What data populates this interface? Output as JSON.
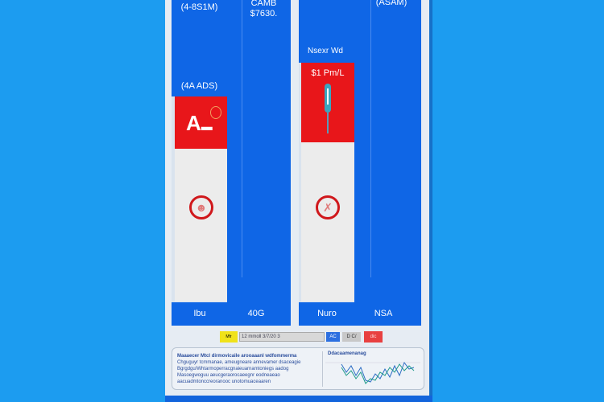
{
  "colors": {
    "background": "#1c9cf0",
    "primary_blue": "#0f66e6",
    "alert_red": "#e8161a",
    "highlight_yellow": "#f0e21a"
  },
  "left_card": {
    "top_label": "(4-8S1M)",
    "mid_label": "(4A ADS)",
    "right_top_label": "CAMB",
    "right_top_value": "$7630.",
    "red_icon": "warning-symbol-icon",
    "circle_icon": "person-prohibited-icon",
    "footer_left": "Ibu",
    "footer_right": "40G"
  },
  "right_card": {
    "top_label": "(ASAM)",
    "header_label": "Nsexr Wd",
    "red_value": "$1 Pm/L",
    "red_icon": "syringe-icon",
    "circle_icon": "no-injection-icon",
    "footer_left": "Nuro",
    "footer_right": "NSA"
  },
  "legend": {
    "yellow_label": "Mfr",
    "bar_label": "12 mmoll 3/7/20 3",
    "blue_label": "AC",
    "grey_label": "D C/",
    "red_label": "dic"
  },
  "info": {
    "lines": [
      "Maaaecer Mtcl dirmovicaile arooaaanl wdfommerma",
      "Chguguyr tcmmanae, ameugneare annevamer dsaceagie",
      "Bgrgdgu/Whtarmoperracgnaieuarnamtoniegs aadog",
      "Masoegwoguu aeucgeraorocaeegnr eodneaeao",
      "aacuadmtonccreoranooc unotomuaceaaren"
    ],
    "chart_title": "Ddacaamenanag"
  }
}
